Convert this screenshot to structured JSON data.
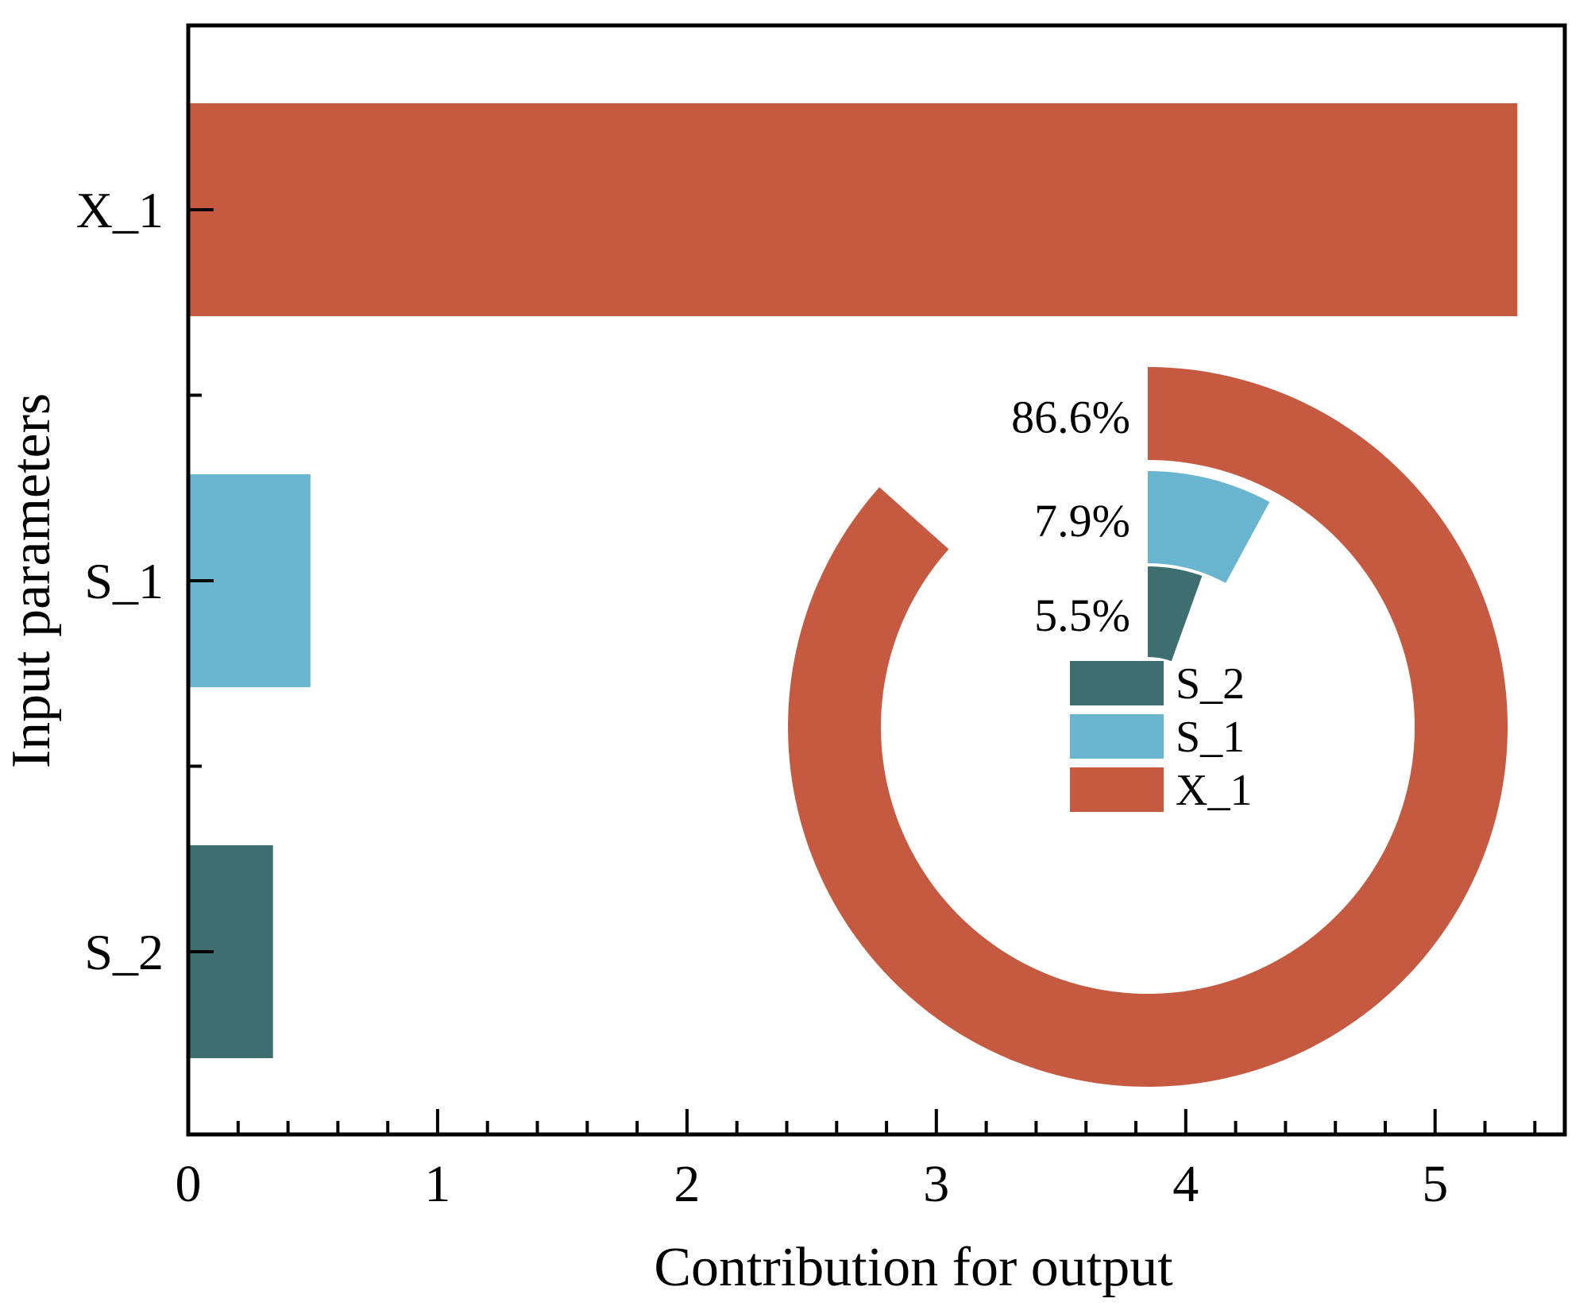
{
  "chart_data": {
    "type": "bar",
    "orientation": "horizontal",
    "xlabel": "Contribution for output",
    "ylabel": "Input parameters",
    "categories": [
      "X_1",
      "S_1",
      "S_2"
    ],
    "values": [
      5.33,
      0.49,
      0.34
    ],
    "colors": [
      "#C65A40",
      "#69B5D0",
      "#3F6E70"
    ],
    "xlim": [
      0,
      5.52
    ],
    "x_major_ticks": [
      0,
      1,
      2,
      3,
      4,
      5
    ],
    "x_minor_step": 0.2,
    "grid": false,
    "legend_position": "inside-donut-center",
    "inset_donut": {
      "type": "pie",
      "style": "nested-radial-bars-clockwise-from-top",
      "labels": [
        "X_1",
        "S_1",
        "S_2"
      ],
      "percents": [
        86.6,
        7.9,
        5.5
      ],
      "percent_labels": [
        "86.6%",
        "7.9%",
        "5.5%"
      ],
      "colors": [
        "#C65A40",
        "#69B5D0",
        "#3F6E70"
      ],
      "legend": [
        {
          "label": "S_2",
          "color": "#3F6E70"
        },
        {
          "label": "S_1",
          "color": "#69B5D0"
        },
        {
          "label": "X_1",
          "color": "#C65A40"
        }
      ]
    }
  }
}
